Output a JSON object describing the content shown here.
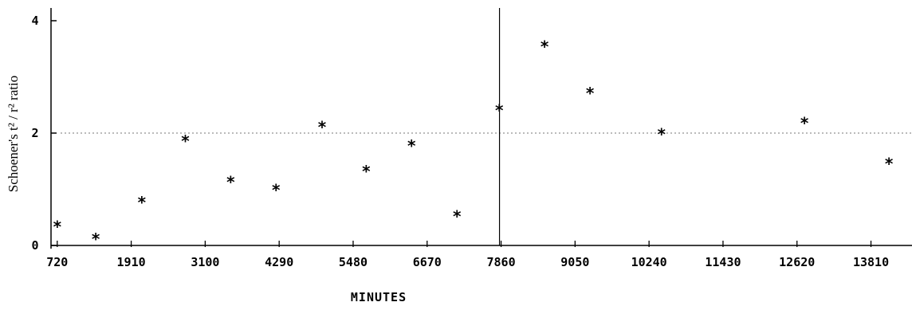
{
  "chart_data": {
    "type": "scatter",
    "title": "",
    "xlabel": "MINUTES",
    "ylabel": "Schoener's  t² / r² ratio",
    "xlim": [
      620,
      14470
    ],
    "ylim": [
      0,
      4
    ],
    "x_ticks": [
      720,
      1910,
      3100,
      4290,
      5480,
      6670,
      7860,
      9050,
      10240,
      11430,
      12620,
      13810
    ],
    "x_tick_labels": [
      "720",
      "1910",
      "3100",
      "4290",
      "5480",
      "6670",
      "7860",
      "9050",
      "10240",
      "11430",
      "12620",
      "13810"
    ],
    "y_ticks": [
      0,
      2,
      4
    ],
    "y_tick_labels": [
      "0",
      "2",
      "4"
    ],
    "reference_line_y": 2,
    "vertical_line_x": 7860,
    "marker": "*",
    "grid": false,
    "series": [
      {
        "x": [
          720,
          1340,
          2080,
          2780,
          3510,
          4240,
          4980,
          5690,
          6420,
          7150,
          7830,
          8560,
          9290,
          10440,
          12740,
          14100
        ],
        "y": [
          0.35,
          0.13,
          0.78,
          1.87,
          1.14,
          1.0,
          2.12,
          1.33,
          1.79,
          0.53,
          2.42,
          3.55,
          2.72,
          1.99,
          2.19,
          1.47
        ]
      }
    ]
  }
}
